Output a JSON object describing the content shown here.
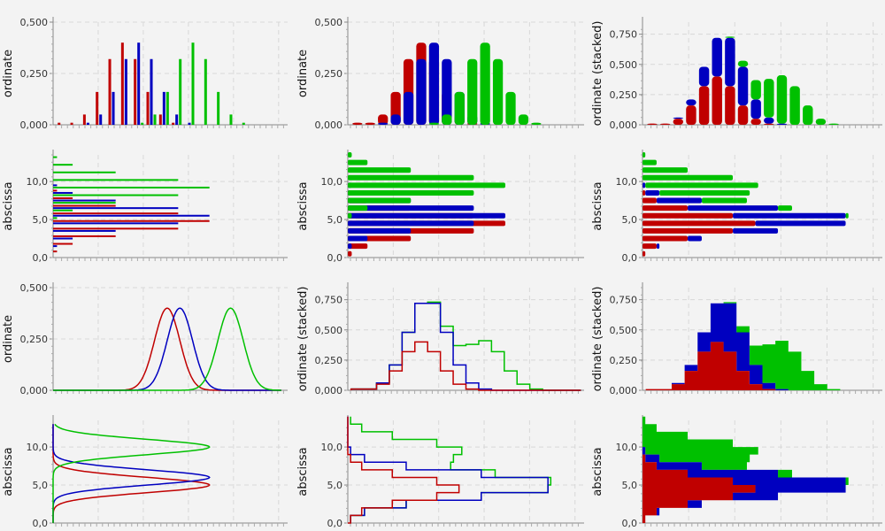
{
  "colors": {
    "red": "#c00000",
    "blue": "#0000c0",
    "green": "#00c000",
    "grid": "#d8d8d8",
    "axis": "#888888",
    "background": "#f3f3f3"
  },
  "chart_data": [
    {
      "id": "p00",
      "type": "bar",
      "mode": "grouped",
      "orientation": "vertical",
      "ylabel": "ordinate",
      "ylim": [
        0,
        0.5
      ],
      "yticks": [
        "0,000",
        "0,250",
        "0,500"
      ],
      "x": [
        -3.5,
        -2.5,
        -1.5,
        -0.5,
        0.5,
        1.5,
        2.5,
        3.5,
        4.5,
        5.5,
        6.5,
        7.5,
        8.5,
        9.5,
        10.5,
        11.5,
        12.5,
        13.5
      ],
      "series": [
        {
          "name": "red",
          "color": "#c00000",
          "values": [
            0.01,
            0.01,
            0.05,
            0.16,
            0.32,
            0.4,
            0.32,
            0.16,
            0.05,
            0.01,
            0,
            0,
            0,
            0,
            0,
            0,
            0,
            0
          ]
        },
        {
          "name": "blue",
          "color": "#0000c0",
          "values": [
            0,
            0,
            0.01,
            0.05,
            0.16,
            0.32,
            0.4,
            0.32,
            0.16,
            0.05,
            0.01,
            0,
            0,
            0,
            0,
            0,
            0,
            0
          ]
        },
        {
          "name": "green",
          "color": "#00c000",
          "values": [
            0,
            0,
            0,
            0,
            0,
            0,
            0.01,
            0.05,
            0.16,
            0.32,
            0.4,
            0.32,
            0.16,
            0.05,
            0.01,
            0,
            0,
            0
          ]
        }
      ]
    },
    {
      "id": "p01",
      "type": "bar",
      "mode": "overlapped",
      "orientation": "vertical",
      "ylabel": "ordinate",
      "ylim": [
        0,
        0.5
      ],
      "yticks": [
        "0,000",
        "0,250",
        "0,500"
      ],
      "x": [
        -3.5,
        -2.5,
        -1.5,
        -0.5,
        0.5,
        1.5,
        2.5,
        3.5,
        4.5,
        5.5,
        6.5,
        7.5,
        8.5,
        9.5,
        10.5,
        11.5,
        12.5,
        13.5
      ],
      "series": [
        {
          "name": "red",
          "color": "#c00000",
          "values": [
            0.01,
            0.01,
            0.05,
            0.16,
            0.32,
            0.4,
            0.32,
            0.16,
            0.05,
            0.01,
            0,
            0,
            0,
            0,
            0,
            0,
            0,
            0
          ]
        },
        {
          "name": "blue",
          "color": "#0000c0",
          "values": [
            0,
            0,
            0.01,
            0.05,
            0.16,
            0.32,
            0.4,
            0.32,
            0.16,
            0.05,
            0.01,
            0,
            0,
            0,
            0,
            0,
            0,
            0
          ]
        },
        {
          "name": "green",
          "color": "#00c000",
          "values": [
            0,
            0,
            0,
            0,
            0,
            0,
            0.01,
            0.05,
            0.16,
            0.32,
            0.4,
            0.32,
            0.16,
            0.05,
            0.01,
            0,
            0,
            0
          ]
        }
      ]
    },
    {
      "id": "p02",
      "type": "bar",
      "mode": "stacked",
      "orientation": "vertical",
      "ylabel": "ordinate (stacked)",
      "ylim": [
        0,
        0.85
      ],
      "yticks": [
        "0,000",
        "0,250",
        "0,500",
        "0,750"
      ],
      "x": [
        -3.5,
        -2.5,
        -1.5,
        -0.5,
        0.5,
        1.5,
        2.5,
        3.5,
        4.5,
        5.5,
        6.5,
        7.5,
        8.5,
        9.5,
        10.5,
        11.5,
        12.5,
        13.5
      ],
      "series": [
        {
          "name": "red",
          "color": "#c00000",
          "values": [
            0.01,
            0.01,
            0.05,
            0.16,
            0.32,
            0.4,
            0.32,
            0.16,
            0.05,
            0.01,
            0,
            0,
            0,
            0,
            0,
            0,
            0,
            0
          ]
        },
        {
          "name": "blue",
          "color": "#0000c0",
          "values": [
            0,
            0,
            0.01,
            0.05,
            0.16,
            0.32,
            0.4,
            0.32,
            0.16,
            0.05,
            0.01,
            0,
            0,
            0,
            0,
            0,
            0,
            0
          ]
        },
        {
          "name": "green",
          "color": "#00c000",
          "values": [
            0,
            0,
            0,
            0,
            0,
            0,
            0.01,
            0.05,
            0.16,
            0.32,
            0.4,
            0.32,
            0.16,
            0.05,
            0.01,
            0,
            0,
            0
          ]
        }
      ]
    },
    {
      "id": "p10",
      "type": "bar",
      "mode": "grouped",
      "orientation": "horizontal",
      "ylabel": "abscissa",
      "ylim": [
        0,
        13.5
      ],
      "yticks": [
        "0,0",
        "5,0",
        "10,0"
      ],
      "yticks_values": [
        0,
        5,
        10
      ],
      "xlim": [
        0,
        0.6
      ],
      "x": [
        0.5,
        1.5,
        2.5,
        3.5,
        4.5,
        5.5,
        6.5,
        7.5,
        8.5,
        9.5,
        10.5,
        11.5,
        12.5,
        13.5
      ],
      "series": [
        {
          "name": "red",
          "color": "#c00000",
          "values": [
            0.01,
            0.05,
            0.16,
            0.32,
            0.4,
            0.32,
            0.16,
            0.05,
            0.01,
            0,
            0,
            0,
            0,
            0
          ]
        },
        {
          "name": "blue",
          "color": "#0000c0",
          "values": [
            0,
            0.01,
            0.05,
            0.16,
            0.32,
            0.4,
            0.32,
            0.16,
            0.05,
            0.01,
            0,
            0,
            0,
            0
          ]
        },
        {
          "name": "green",
          "color": "#00c000",
          "values": [
            0,
            0,
            0,
            0,
            0,
            0.01,
            0.05,
            0.16,
            0.32,
            0.4,
            0.32,
            0.16,
            0.05,
            0.01
          ]
        }
      ]
    },
    {
      "id": "p11",
      "type": "bar",
      "mode": "overlapped",
      "orientation": "horizontal",
      "ylabel": "abscissa",
      "ylim": [
        0,
        13.5
      ],
      "yticks": [
        "0,0",
        "5,0",
        "10,0"
      ],
      "yticks_values": [
        0,
        5,
        10
      ],
      "xlim": [
        0,
        0.6
      ],
      "x": [
        0.5,
        1.5,
        2.5,
        3.5,
        4.5,
        5.5,
        6.5,
        7.5,
        8.5,
        9.5,
        10.5,
        11.5,
        12.5,
        13.5
      ],
      "series": [
        {
          "name": "red",
          "color": "#c00000",
          "values": [
            0.01,
            0.05,
            0.16,
            0.32,
            0.4,
            0.32,
            0.16,
            0.05,
            0.01,
            0,
            0,
            0,
            0,
            0
          ]
        },
        {
          "name": "blue",
          "color": "#0000c0",
          "values": [
            0,
            0.01,
            0.05,
            0.16,
            0.32,
            0.4,
            0.32,
            0.16,
            0.05,
            0.01,
            0,
            0,
            0,
            0
          ]
        },
        {
          "name": "green",
          "color": "#00c000",
          "values": [
            0,
            0,
            0,
            0,
            0,
            0.01,
            0.05,
            0.16,
            0.32,
            0.4,
            0.32,
            0.16,
            0.05,
            0.01
          ]
        }
      ]
    },
    {
      "id": "p12",
      "type": "bar",
      "mode": "stacked",
      "orientation": "horizontal",
      "ylabel": "abscissa",
      "ylim": [
        0,
        13.5
      ],
      "yticks": [
        "0,0",
        "5,0",
        "10,0"
      ],
      "yticks_values": [
        0,
        5,
        10
      ],
      "xlim": [
        0,
        0.85
      ],
      "x": [
        0.5,
        1.5,
        2.5,
        3.5,
        4.5,
        5.5,
        6.5,
        7.5,
        8.5,
        9.5,
        10.5,
        11.5,
        12.5,
        13.5
      ],
      "series": [
        {
          "name": "red",
          "color": "#c00000",
          "values": [
            0.01,
            0.05,
            0.16,
            0.32,
            0.4,
            0.32,
            0.16,
            0.05,
            0.01,
            0,
            0,
            0,
            0,
            0
          ]
        },
        {
          "name": "blue",
          "color": "#0000c0",
          "values": [
            0,
            0.01,
            0.05,
            0.16,
            0.32,
            0.4,
            0.32,
            0.16,
            0.05,
            0.01,
            0,
            0,
            0,
            0
          ]
        },
        {
          "name": "green",
          "color": "#00c000",
          "values": [
            0,
            0,
            0,
            0,
            0,
            0.01,
            0.05,
            0.16,
            0.32,
            0.4,
            0.32,
            0.16,
            0.05,
            0.01
          ]
        }
      ]
    },
    {
      "id": "p20",
      "type": "line",
      "mode": "gaussian",
      "orientation": "vertical",
      "ylabel": "ordinate",
      "ylim": [
        0,
        0.5
      ],
      "yticks": [
        "0,000",
        "0,250",
        "0,500"
      ],
      "xlim": [
        -4,
        14.5
      ],
      "series": [
        {
          "name": "red",
          "color": "#c00000",
          "mean": 5,
          "sd": 1,
          "peak": 0.4,
          "x_range": [
            -4,
            14
          ]
        },
        {
          "name": "blue",
          "color": "#0000c0",
          "mean": 6,
          "sd": 1,
          "peak": 0.4,
          "x_range": [
            -4,
            14
          ]
        },
        {
          "name": "green",
          "color": "#00c000",
          "mean": 10,
          "sd": 1,
          "peak": 0.4,
          "x_range": [
            -4,
            14
          ]
        }
      ]
    },
    {
      "id": "p21",
      "type": "line",
      "mode": "step-stacked",
      "orientation": "vertical",
      "ylabel": "ordinate (stacked)",
      "ylim": [
        0,
        0.85
      ],
      "yticks": [
        "0,000",
        "0,250",
        "0,500",
        "0,750"
      ],
      "x": [
        -3.5,
        -2.5,
        -1.5,
        -0.5,
        0.5,
        1.5,
        2.5,
        3.5,
        4.5,
        5.5,
        6.5,
        7.5,
        8.5,
        9.5,
        10.5,
        11.5,
        12.5,
        13.5
      ],
      "series": [
        {
          "name": "red",
          "color": "#c00000",
          "values": [
            0.01,
            0.01,
            0.05,
            0.16,
            0.32,
            0.4,
            0.32,
            0.16,
            0.05,
            0.01,
            0,
            0,
            0,
            0,
            0,
            0,
            0,
            0
          ]
        },
        {
          "name": "blue",
          "color": "#0000c0",
          "values": [
            0,
            0,
            0.01,
            0.05,
            0.16,
            0.32,
            0.4,
            0.32,
            0.16,
            0.05,
            0.01,
            0,
            0,
            0,
            0,
            0,
            0,
            0
          ]
        },
        {
          "name": "green",
          "color": "#00c000",
          "values": [
            0,
            0,
            0,
            0,
            0,
            0,
            0.01,
            0.05,
            0.16,
            0.32,
            0.4,
            0.32,
            0.16,
            0.05,
            0.01,
            0,
            0,
            0
          ]
        }
      ]
    },
    {
      "id": "p22",
      "type": "area",
      "mode": "step-stacked-filled",
      "orientation": "vertical",
      "ylabel": "ordinate (stacked)",
      "ylim": [
        0,
        0.85
      ],
      "yticks": [
        "0,000",
        "0,250",
        "0,500",
        "0,750"
      ],
      "x": [
        -3.5,
        -2.5,
        -1.5,
        -0.5,
        0.5,
        1.5,
        2.5,
        3.5,
        4.5,
        5.5,
        6.5,
        7.5,
        8.5,
        9.5,
        10.5,
        11.5,
        12.5,
        13.5
      ],
      "series": [
        {
          "name": "red",
          "color": "#c00000",
          "values": [
            0.01,
            0.01,
            0.05,
            0.16,
            0.32,
            0.4,
            0.32,
            0.16,
            0.05,
            0.01,
            0,
            0,
            0,
            0,
            0,
            0,
            0,
            0
          ]
        },
        {
          "name": "blue",
          "color": "#0000c0",
          "values": [
            0,
            0,
            0.01,
            0.05,
            0.16,
            0.32,
            0.4,
            0.32,
            0.16,
            0.05,
            0.01,
            0,
            0,
            0,
            0,
            0,
            0,
            0
          ]
        },
        {
          "name": "green",
          "color": "#00c000",
          "values": [
            0,
            0,
            0,
            0,
            0,
            0,
            0.01,
            0.05,
            0.16,
            0.32,
            0.4,
            0.32,
            0.16,
            0.05,
            0.01,
            0,
            0,
            0
          ]
        }
      ]
    },
    {
      "id": "p30",
      "type": "line",
      "mode": "gaussian",
      "orientation": "horizontal",
      "ylabel": "abscissa",
      "ylim": [
        0,
        13.5
      ],
      "yticks": [
        "0,0",
        "5,0",
        "10,0"
      ],
      "yticks_values": [
        0,
        5,
        10
      ],
      "xlim": [
        0,
        0.6
      ],
      "series": [
        {
          "name": "red",
          "color": "#c00000",
          "mean": 5,
          "sd": 1,
          "peak": 0.4,
          "x_range": [
            0,
            13
          ]
        },
        {
          "name": "blue",
          "color": "#0000c0",
          "mean": 6,
          "sd": 1,
          "peak": 0.4,
          "x_range": [
            0,
            13
          ]
        },
        {
          "name": "green",
          "color": "#00c000",
          "mean": 10,
          "sd": 1,
          "peak": 0.4,
          "x_range": [
            0,
            13
          ]
        }
      ]
    },
    {
      "id": "p31",
      "type": "line",
      "mode": "step-stacked",
      "orientation": "horizontal",
      "ylabel": "abscissa",
      "ylim": [
        0,
        13.5
      ],
      "yticks": [
        "0,0",
        "5,0",
        "10,0"
      ],
      "yticks_values": [
        0,
        5,
        10
      ],
      "xlim": [
        0,
        0.85
      ],
      "x": [
        0.5,
        1.5,
        2.5,
        3.5,
        4.5,
        5.5,
        6.5,
        7.5,
        8.5,
        9.5,
        10.5,
        11.5,
        12.5,
        13.5
      ],
      "series": [
        {
          "name": "red",
          "color": "#c00000",
          "values": [
            0.01,
            0.05,
            0.16,
            0.32,
            0.4,
            0.32,
            0.16,
            0.05,
            0.01,
            0,
            0,
            0,
            0,
            0
          ]
        },
        {
          "name": "blue",
          "color": "#0000c0",
          "values": [
            0,
            0.01,
            0.05,
            0.16,
            0.32,
            0.4,
            0.32,
            0.16,
            0.05,
            0.01,
            0,
            0,
            0,
            0
          ]
        },
        {
          "name": "green",
          "color": "#00c000",
          "values": [
            0,
            0,
            0,
            0,
            0,
            0.01,
            0.05,
            0.16,
            0.32,
            0.4,
            0.32,
            0.16,
            0.05,
            0.01
          ]
        }
      ]
    },
    {
      "id": "p32",
      "type": "area",
      "mode": "step-stacked-filled",
      "orientation": "horizontal",
      "ylabel": "abscissa",
      "ylim": [
        0,
        13.5
      ],
      "yticks": [
        "0,0",
        "5,0",
        "10,0"
      ],
      "yticks_values": [
        0,
        5,
        10
      ],
      "xlim": [
        0,
        0.85
      ],
      "x": [
        0.5,
        1.5,
        2.5,
        3.5,
        4.5,
        5.5,
        6.5,
        7.5,
        8.5,
        9.5,
        10.5,
        11.5,
        12.5,
        13.5
      ],
      "series": [
        {
          "name": "red",
          "color": "#c00000",
          "values": [
            0.01,
            0.05,
            0.16,
            0.32,
            0.4,
            0.32,
            0.16,
            0.05,
            0.01,
            0,
            0,
            0,
            0,
            0
          ]
        },
        {
          "name": "blue",
          "color": "#0000c0",
          "values": [
            0,
            0.01,
            0.05,
            0.16,
            0.32,
            0.4,
            0.32,
            0.16,
            0.05,
            0.01,
            0,
            0,
            0,
            0
          ]
        },
        {
          "name": "green",
          "color": "#00c000",
          "values": [
            0,
            0,
            0,
            0,
            0,
            0.01,
            0.05,
            0.16,
            0.32,
            0.4,
            0.32,
            0.16,
            0.05,
            0.01
          ]
        }
      ]
    }
  ]
}
